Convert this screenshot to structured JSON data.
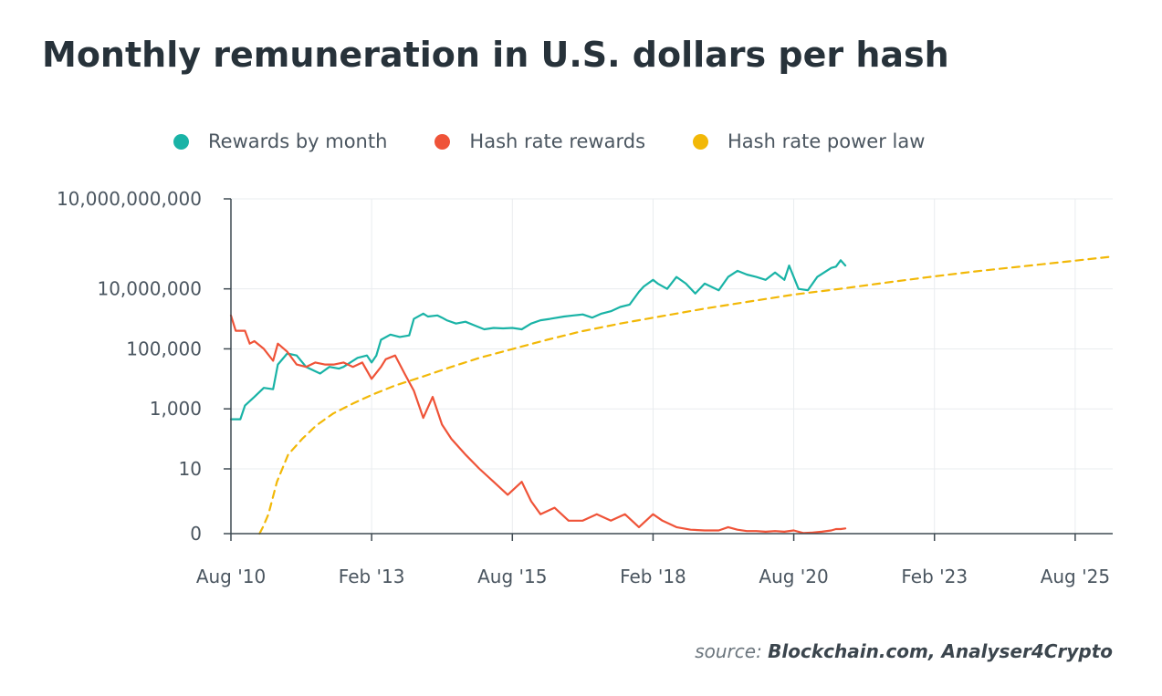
{
  "title": "Monthly remuneration in U.S. dollars per hash",
  "source": {
    "prefix": "source:",
    "names": "Blockchain.com,  Analyser4Crypto"
  },
  "colors": {
    "rewards_by_month": "#19b3a6",
    "hash_rate_rewards": "#ef5338",
    "hash_rate_power_law": "#f2b807",
    "grid": "#e9ecef",
    "axis": "#3f4a52",
    "tick_text": "#4b5660"
  },
  "chart_data": {
    "type": "line",
    "title": "Monthly remuneration in U.S. dollars per hash",
    "xlabel": "",
    "ylabel": "",
    "y_scale": "symlog",
    "ylim": [
      0,
      10000000000
    ],
    "xlim": [
      2010.583,
      2026.25
    ],
    "x_ticks": [
      {
        "value": 2010.583,
        "label": "Aug '10"
      },
      {
        "value": 2013.083,
        "label": "Feb '13"
      },
      {
        "value": 2015.583,
        "label": "Aug '15"
      },
      {
        "value": 2018.083,
        "label": "Feb '18"
      },
      {
        "value": 2020.583,
        "label": "Aug '20"
      },
      {
        "value": 2023.083,
        "label": "Feb '23"
      },
      {
        "value": 2025.583,
        "label": "Aug '25"
      }
    ],
    "y_ticks": [
      {
        "value": 0,
        "label": "0"
      },
      {
        "value": 10,
        "label": "10"
      },
      {
        "value": 1000,
        "label": "1,000"
      },
      {
        "value": 100000,
        "label": "100,000"
      },
      {
        "value": 10000000,
        "label": "10,000,000"
      },
      {
        "value": 10000000000,
        "label": "10,000,000,000"
      }
    ],
    "grid": true,
    "legend_position": "top",
    "series": [
      {
        "name": "Rewards by month",
        "style": "solid",
        "x": [
          2010.583,
          2010.75,
          2010.833,
          2011.0,
          2011.167,
          2011.333,
          2011.417,
          2011.583,
          2011.75,
          2011.917,
          2012.167,
          2012.333,
          2012.5,
          2012.583,
          2012.833,
          2013.0,
          2013.083,
          2013.167,
          2013.25,
          2013.417,
          2013.583,
          2013.75,
          2013.833,
          2014.0,
          2014.083,
          2014.25,
          2014.333,
          2014.417,
          2014.583,
          2014.75,
          2014.917,
          2015.083,
          2015.25,
          2015.417,
          2015.583,
          2015.75,
          2015.917,
          2016.083,
          2016.25,
          2016.5,
          2016.667,
          2016.833,
          2017.0,
          2017.167,
          2017.333,
          2017.5,
          2017.667,
          2017.833,
          2017.917,
          2018.083,
          2018.167,
          2018.333,
          2018.5,
          2018.667,
          2018.833,
          2019.0,
          2019.25,
          2019.417,
          2019.583,
          2019.75,
          2019.917,
          2020.083,
          2020.25,
          2020.417,
          2020.5,
          2020.667,
          2020.833,
          2021.0,
          2021.167,
          2021.25,
          2021.333,
          2021.417,
          2021.5
        ],
        "values": [
          450,
          450,
          1300,
          2500,
          5000,
          4500,
          30000,
          70000,
          60000,
          25000,
          15000,
          25000,
          22000,
          25000,
          50000,
          60000,
          35000,
          60000,
          200000,
          300000,
          250000,
          280000,
          1000000,
          1500000,
          1200000,
          1300000,
          1100000,
          900000,
          700000,
          800000,
          600000,
          450000,
          500000,
          480000,
          500000,
          450000,
          700000,
          900000,
          1000000,
          1200000,
          1300000,
          1400000,
          1100000,
          1500000,
          1800000,
          2500000,
          3000000,
          8000000,
          12000000,
          20000000,
          15000000,
          10000000,
          25000000,
          15000000,
          7000000,
          15000000,
          9000000,
          25000000,
          40000000,
          30000000,
          25000000,
          20000000,
          35000000,
          20000000,
          60000000,
          10000000,
          9000000,
          25000000,
          40000000,
          50000000,
          55000000,
          90000000,
          60000000
        ]
      },
      {
        "name": "Hash rate rewards",
        "style": "solid",
        "x": [
          2010.583,
          2010.667,
          2010.833,
          2010.917,
          2011.0,
          2011.167,
          2011.333,
          2011.417,
          2011.583,
          2011.75,
          2011.917,
          2012.083,
          2012.25,
          2012.417,
          2012.583,
          2012.75,
          2012.917,
          2013.083,
          2013.25,
          2013.333,
          2013.5,
          2013.667,
          2013.833,
          2014.0,
          2014.167,
          2014.333,
          2014.5,
          2014.75,
          2015.0,
          2015.25,
          2015.5,
          2015.75,
          2015.917,
          2016.083,
          2016.333,
          2016.583,
          2016.833,
          2017.083,
          2017.333,
          2017.583,
          2017.833,
          2018.083,
          2018.25,
          2018.5,
          2018.75,
          2019.0,
          2019.25,
          2019.417,
          2019.583,
          2019.75,
          2019.917,
          2020.083,
          2020.25,
          2020.417,
          2020.583,
          2020.75,
          2020.917,
          2021.083,
          2021.25,
          2021.333,
          2021.417,
          2021.5
        ],
        "values": [
          1300000,
          400000,
          400000,
          150000,
          180000,
          100000,
          40000,
          150000,
          80000,
          30000,
          25000,
          35000,
          30000,
          30000,
          35000,
          25000,
          35000,
          10000,
          25000,
          45000,
          60000,
          15000,
          4000,
          500,
          2500,
          300,
          100,
          30,
          10,
          8,
          6,
          8,
          5,
          3,
          4,
          2,
          2,
          3,
          2,
          3,
          1,
          3,
          2,
          1,
          0.6,
          0.5,
          0.5,
          1,
          0.6,
          0.4,
          0.4,
          0.3,
          0.4,
          0.3,
          0.5,
          0.1,
          0.15,
          0.3,
          0.5,
          0.7,
          0.7,
          0.8
        ]
      },
      {
        "name": "Hash rate power law",
        "style": "dashed",
        "x": [
          2011.09,
          2011.15,
          2011.25,
          2011.4,
          2011.6,
          2011.85,
          2012.1,
          2012.4,
          2012.75,
          2013.1,
          2013.5,
          2014.0,
          2014.5,
          2015.0,
          2015.6,
          2016.2,
          2016.8,
          2017.5,
          2018.2,
          2019.0,
          2019.8,
          2020.6,
          2021.4,
          2022.2,
          2023.0,
          2023.8,
          2024.6,
          2025.4,
          2026.25
        ],
        "values": [
          0,
          1,
          3,
          8,
          30,
          100,
          280,
          700,
          1500,
          3000,
          6000,
          12000,
          25000,
          50000,
          100000,
          200000,
          380000,
          700000,
          1200000,
          2200000,
          3800000,
          6500000,
          10000000,
          16000000,
          25000000,
          38000000,
          55000000,
          80000000,
          120000000
        ]
      }
    ]
  }
}
